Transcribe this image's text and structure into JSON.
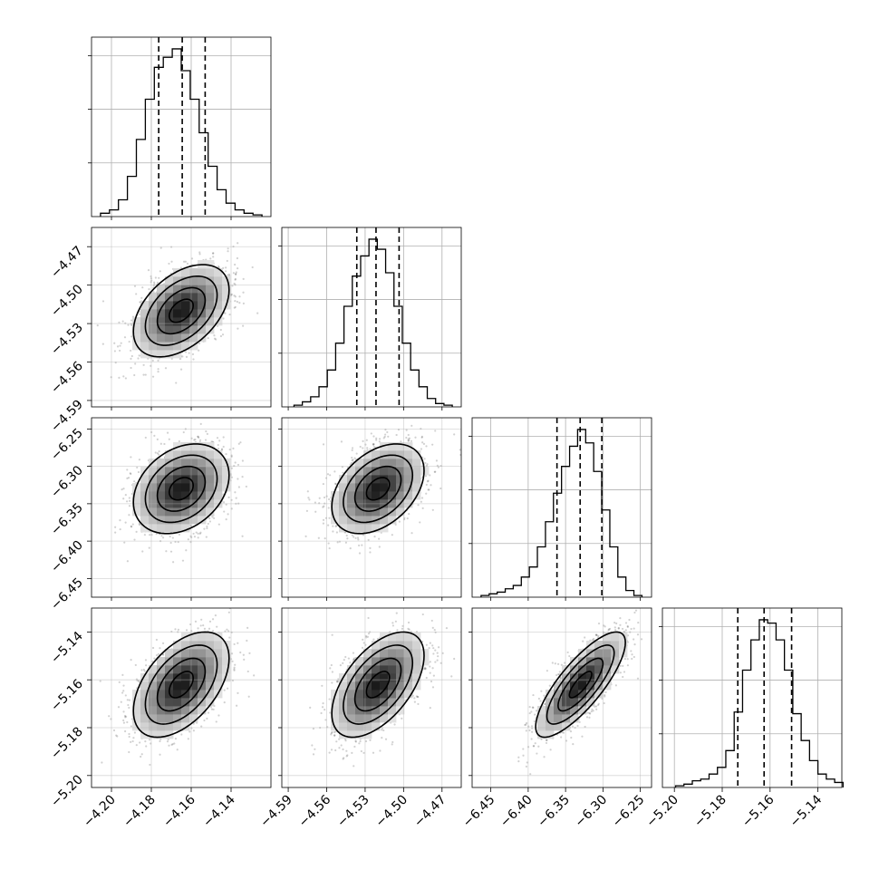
{
  "chart_data": {
    "type": "corner",
    "parameters": [
      {
        "range": [
          -4.21,
          -4.12
        ],
        "ticks": [
          -4.2,
          -4.18,
          -4.16,
          -4.14
        ],
        "tick_labels": [
          "−4.20",
          "−4.18",
          "−4.16",
          "−4.14"
        ],
        "quantiles": [
          -4.1763,
          -4.1645,
          -4.153
        ],
        "hist": {
          "bin_edges": [
            -4.2055,
            -4.201,
            -4.1965,
            -4.192,
            -4.1875,
            -4.183,
            -4.1785,
            -4.174,
            -4.1695,
            -4.165,
            -4.1605,
            -4.156,
            -4.1515,
            -4.147,
            -4.1425,
            -4.138,
            -4.1335,
            -4.129,
            -4.1245
          ],
          "counts": [
            2,
            4,
            10,
            24,
            46,
            70,
            89,
            95,
            100,
            87,
            70,
            50,
            30,
            16,
            8,
            4,
            2,
            1
          ]
        }
      },
      {
        "range": [
          -4.595,
          -4.455
        ],
        "ticks": [
          -4.59,
          -4.56,
          -4.53,
          -4.5,
          -4.47
        ],
        "tick_labels": [
          "−4.59",
          "−4.56",
          "−4.53",
          "−4.50",
          "−4.47"
        ],
        "quantiles": [
          -4.5365,
          -4.5215,
          -4.5035
        ],
        "hist": {
          "bin_edges": [
            -4.5855,
            -4.579,
            -4.5725,
            -4.566,
            -4.5595,
            -4.553,
            -4.5465,
            -4.54,
            -4.5335,
            -4.527,
            -4.5205,
            -4.514,
            -4.5075,
            -4.501,
            -4.4945,
            -4.488,
            -4.4815,
            -4.475,
            -4.4685,
            -4.462
          ],
          "counts": [
            1,
            3,
            6,
            12,
            22,
            38,
            60,
            78,
            90,
            100,
            94,
            80,
            60,
            38,
            22,
            12,
            5,
            2,
            1
          ]
        }
      },
      {
        "range": [
          -6.475,
          -6.235
        ],
        "ticks": [
          -6.45,
          -6.4,
          -6.35,
          -6.3,
          -6.25
        ],
        "tick_labels": [
          "−6.45",
          "−6.40",
          "−6.35",
          "−6.30",
          "−6.25"
        ],
        "quantiles": [
          -6.3615,
          -6.3305,
          -6.3015
        ],
        "hist": {
          "bin_edges": [
            -6.463,
            -6.4522,
            -6.4415,
            -6.4307,
            -6.42,
            -6.4092,
            -6.3984,
            -6.3877,
            -6.3769,
            -6.3662,
            -6.3554,
            -6.3446,
            -6.3339,
            -6.3231,
            -6.3124,
            -6.3016,
            -6.2908,
            -6.2801,
            -6.2693,
            -6.2586,
            -6.2478
          ],
          "counts": [
            1,
            2,
            3,
            5,
            7,
            12,
            18,
            30,
            45,
            62,
            78,
            90,
            100,
            92,
            75,
            52,
            30,
            12,
            4,
            1
          ]
        }
      },
      {
        "range": [
          -5.205,
          -5.13
        ],
        "ticks": [
          -5.2,
          -5.18,
          -5.16,
          -5.14
        ],
        "tick_labels": [
          "−5.20",
          "−5.18",
          "−5.16",
          "−5.14"
        ],
        "quantiles": [
          -5.1735,
          -5.1625,
          -5.151
        ],
        "hist": {
          "bin_edges": [
            -5.1995,
            -5.196,
            -5.1925,
            -5.189,
            -5.1855,
            -5.182,
            -5.1785,
            -5.175,
            -5.1715,
            -5.168,
            -5.1645,
            -5.161,
            -5.1575,
            -5.154,
            -5.1505,
            -5.147,
            -5.1435,
            -5.14,
            -5.1365,
            -5.133,
            -5.1295
          ],
          "counts": [
            1,
            2,
            4,
            5,
            8,
            12,
            22,
            45,
            70,
            88,
            100,
            98,
            88,
            70,
            44,
            28,
            16,
            8,
            5,
            3
          ]
        }
      }
    ],
    "pairs": [
      {
        "x": 0,
        "y": 1,
        "mean": [
          -4.165,
          -4.52
        ],
        "sd": [
          0.012,
          0.018
        ],
        "corr": 0.45
      },
      {
        "x": 0,
        "y": 2,
        "mean": [
          -4.165,
          -6.33
        ],
        "sd": [
          0.012,
          0.03
        ],
        "corr": 0.3
      },
      {
        "x": 1,
        "y": 2,
        "mean": [
          -4.52,
          -6.33
        ],
        "sd": [
          0.018,
          0.03
        ],
        "corr": 0.4
      },
      {
        "x": 0,
        "y": 3,
        "mean": [
          -4.165,
          -5.162
        ],
        "sd": [
          0.012,
          0.011
        ],
        "corr": 0.5
      },
      {
        "x": 1,
        "y": 3,
        "mean": [
          -4.52,
          -5.162
        ],
        "sd": [
          0.018,
          0.011
        ],
        "corr": 0.55
      },
      {
        "x": 2,
        "y": 3,
        "mean": [
          -6.33,
          -5.162
        ],
        "sd": [
          0.03,
          0.011
        ],
        "corr": 0.8
      }
    ],
    "contour_levels": [
      0.5,
      1.0,
      1.5,
      2.0
    ],
    "grid": true,
    "xlabel": "",
    "ylabel": ""
  }
}
